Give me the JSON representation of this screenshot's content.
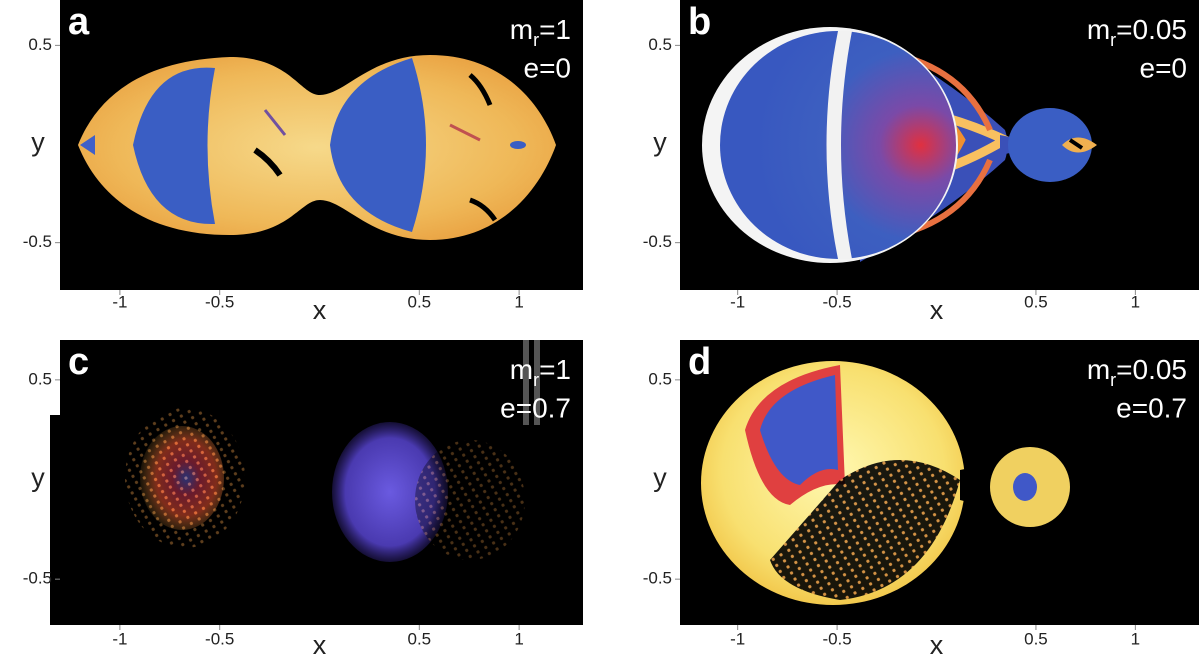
{
  "chart_data": [
    {
      "type": "image",
      "panel_label": "a",
      "annotation": [
        "m",
        "r",
        "=1"
      ],
      "annotation_2": "e=0",
      "x_label": "x",
      "y_label": "y",
      "xlim": [
        -1.3,
        1.32
      ],
      "ylim": [
        -0.74,
        0.73
      ],
      "xticks": [
        -1,
        -0.5,
        0.5,
        1
      ],
      "yticks": [
        0.5,
        -0.5
      ]
    },
    {
      "type": "image",
      "panel_label": "b",
      "annotation": [
        "m",
        "r",
        "=0.05"
      ],
      "annotation_2": "e=0",
      "x_label": "x",
      "y_label": "y",
      "xlim": [
        -1.29,
        1.32
      ],
      "ylim": [
        -0.74,
        0.73
      ],
      "xticks": [
        -1,
        -0.5,
        0.5,
        1
      ],
      "yticks": [
        0.5,
        -0.5
      ]
    },
    {
      "type": "image",
      "panel_label": "c",
      "annotation": [
        "m",
        "r",
        "=1"
      ],
      "annotation_2": "e=0.7",
      "x_label": "x",
      "y_label": "y",
      "xlim": [
        -1.3,
        1.32
      ],
      "ylim": [
        -0.73,
        0.7
      ],
      "xticks": [
        -1,
        -0.5,
        0.5,
        1
      ],
      "yticks": [
        0.5,
        -0.5
      ]
    },
    {
      "type": "image",
      "panel_label": "d",
      "annotation": [
        "m",
        "r",
        "=0.05"
      ],
      "annotation_2": "e=0.7",
      "x_label": "x",
      "y_label": "y",
      "xlim": [
        -1.29,
        1.32
      ],
      "ylim": [
        -0.73,
        0.7
      ],
      "xticks": [
        -1,
        -0.5,
        0.5,
        1
      ],
      "yticks": [
        0.5,
        -0.5
      ]
    }
  ]
}
